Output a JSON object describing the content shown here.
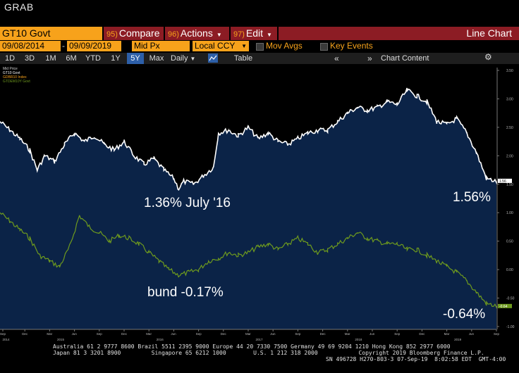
{
  "grab_label": "GRAB",
  "toolbar": {
    "ticker": "GT10 Govt",
    "compare_num": "95)",
    "compare": "Compare",
    "actions_num": "96)",
    "actions": "Actions",
    "edit_num": "97)",
    "edit": "Edit",
    "view_title": "Line Chart"
  },
  "options": {
    "start_date": "09/08/2014",
    "end_date": "09/09/2019",
    "price_field": "Mid Px",
    "currency": "Local CCY",
    "mov_avgs": "Mov Avgs",
    "key_events": "Key Events"
  },
  "timeframes": [
    "1D",
    "3D",
    "1M",
    "6M",
    "YTD",
    "1Y",
    "5Y",
    "Max"
  ],
  "active_timeframe": "5Y",
  "period": "Daily",
  "table_label": "Table",
  "chart_content_label": "Chart Content",
  "legend": {
    "header": "Mid Price",
    "items": [
      "GT10 Govt",
      "GDBR10 Index",
      "GTDEM10Y Govt"
    ]
  },
  "annotations": {
    "us_low": "1.36% July '16",
    "us_last": "1.56%",
    "bund_low": "bund -0.17%",
    "bund_last": "-0.64%"
  },
  "last_tags": {
    "us": "1.56",
    "bund": "-0.64"
  },
  "footer": {
    "line1": "Australia 61 2 9777 8600 Brazil 5511 2395 9000 Europe 44 20 7330 7500 Germany 49 69 9204 1210 Hong Kong 852 2977 6000",
    "line2": "Japan 81 3 3201 8900         Singapore 65 6212 1000        U.S. 1 212 318 2000            Copyright 2019 Bloomberg Finance L.P.",
    "line3": "SN 496728 H270-803-3 07-Sep-19  8:02:58 EDT  GMT-4:00"
  },
  "chart_data": {
    "type": "line",
    "y_ticks": [
      "3.50",
      "3.00",
      "2.50",
      "2.00",
      "1.50",
      "1.00",
      "0.50",
      "0.00",
      "-0.50",
      "-1.00"
    ],
    "ylim": [
      -1.05,
      3.55
    ],
    "x_month_ticks": [
      "Sep",
      "Dec",
      "Mar",
      "Jun",
      "Sep",
      "Dec",
      "Mar",
      "Jun",
      "Sep",
      "Dec",
      "Mar",
      "Jun",
      "Sep",
      "Dec",
      "Mar",
      "Jun",
      "Sep",
      "Dec",
      "Mar",
      "Jun",
      "Sep"
    ],
    "x_year_ticks": [
      "2014",
      "2015",
      "2016",
      "2017",
      "2018",
      "2019"
    ],
    "series": [
      {
        "name": "GT10 Govt",
        "color": "#ffffff",
        "x": [
          0,
          0.02,
          0.04,
          0.06,
          0.075,
          0.09,
          0.11,
          0.13,
          0.15,
          0.17,
          0.19,
          0.21,
          0.23,
          0.25,
          0.27,
          0.29,
          0.31,
          0.33,
          0.35,
          0.36,
          0.37,
          0.39,
          0.41,
          0.43,
          0.44,
          0.46,
          0.48,
          0.5,
          0.52,
          0.54,
          0.56,
          0.58,
          0.6,
          0.62,
          0.64,
          0.66,
          0.68,
          0.7,
          0.72,
          0.74,
          0.76,
          0.78,
          0.8,
          0.82,
          0.84,
          0.86,
          0.88,
          0.9,
          0.92,
          0.94,
          0.96,
          0.98,
          1.0
        ],
        "y": [
          2.6,
          2.45,
          2.3,
          2.1,
          1.75,
          2.0,
          1.9,
          2.2,
          2.4,
          2.25,
          2.35,
          2.2,
          2.1,
          2.25,
          2.0,
          1.85,
          1.95,
          1.75,
          1.6,
          1.42,
          1.55,
          1.5,
          1.65,
          1.8,
          2.4,
          2.45,
          2.35,
          2.5,
          2.3,
          2.4,
          2.25,
          2.2,
          2.3,
          2.4,
          2.45,
          2.45,
          2.6,
          2.75,
          2.85,
          2.8,
          2.85,
          2.95,
          2.9,
          3.15,
          3.05,
          2.95,
          2.6,
          2.55,
          2.65,
          2.4,
          2.05,
          1.6,
          1.55
        ]
      },
      {
        "name": "GTDEM10Y Govt",
        "color": "#6e9a1e",
        "x": [
          0,
          0.02,
          0.04,
          0.06,
          0.08,
          0.1,
          0.12,
          0.14,
          0.16,
          0.18,
          0.2,
          0.22,
          0.24,
          0.26,
          0.28,
          0.3,
          0.32,
          0.34,
          0.36,
          0.38,
          0.4,
          0.42,
          0.44,
          0.46,
          0.48,
          0.5,
          0.52,
          0.54,
          0.56,
          0.58,
          0.6,
          0.62,
          0.64,
          0.66,
          0.68,
          0.7,
          0.72,
          0.74,
          0.76,
          0.78,
          0.8,
          0.82,
          0.84,
          0.86,
          0.88,
          0.9,
          0.92,
          0.94,
          0.96,
          0.98,
          1.0
        ],
        "y": [
          1.0,
          0.85,
          0.7,
          0.55,
          0.25,
          0.15,
          0.05,
          0.4,
          0.95,
          0.75,
          0.65,
          0.5,
          0.6,
          0.55,
          0.45,
          0.3,
          0.15,
          0.0,
          -0.1,
          -0.05,
          0.0,
          0.15,
          0.2,
          0.3,
          0.25,
          0.3,
          0.4,
          0.45,
          0.35,
          0.45,
          0.55,
          0.45,
          0.3,
          0.35,
          0.45,
          0.55,
          0.65,
          0.55,
          0.5,
          0.45,
          0.45,
          0.35,
          0.35,
          0.25,
          0.15,
          0.05,
          -0.05,
          -0.2,
          -0.4,
          -0.6,
          -0.64
        ]
      }
    ]
  }
}
